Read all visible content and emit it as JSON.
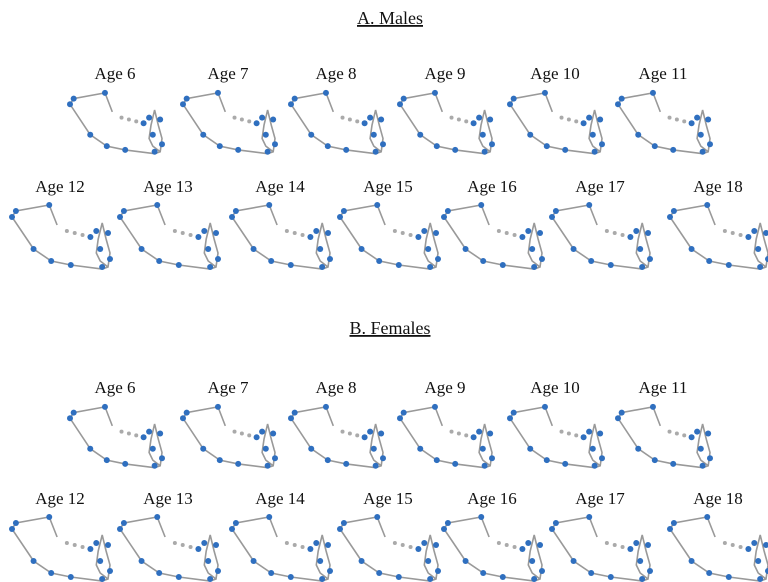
{
  "sections": [
    {
      "title": "A. Males",
      "rows": [
        [
          "Age 6",
          "Age 7",
          "Age 8",
          "Age 9",
          "Age 10",
          "Age 11"
        ],
        [
          "Age 12",
          "Age 13",
          "Age 14",
          "Age 15",
          "Age 16",
          "Age 17",
          "Age 18"
        ]
      ]
    },
    {
      "title": "B. Females",
      "rows": [
        [
          "Age 6",
          "Age 7",
          "Age 8",
          "Age 9",
          "Age 10",
          "Age 11"
        ],
        [
          "Age 12",
          "Age 13",
          "Age 14",
          "Age 15",
          "Age 16",
          "Age 17",
          "Age 18"
        ]
      ]
    }
  ]
}
